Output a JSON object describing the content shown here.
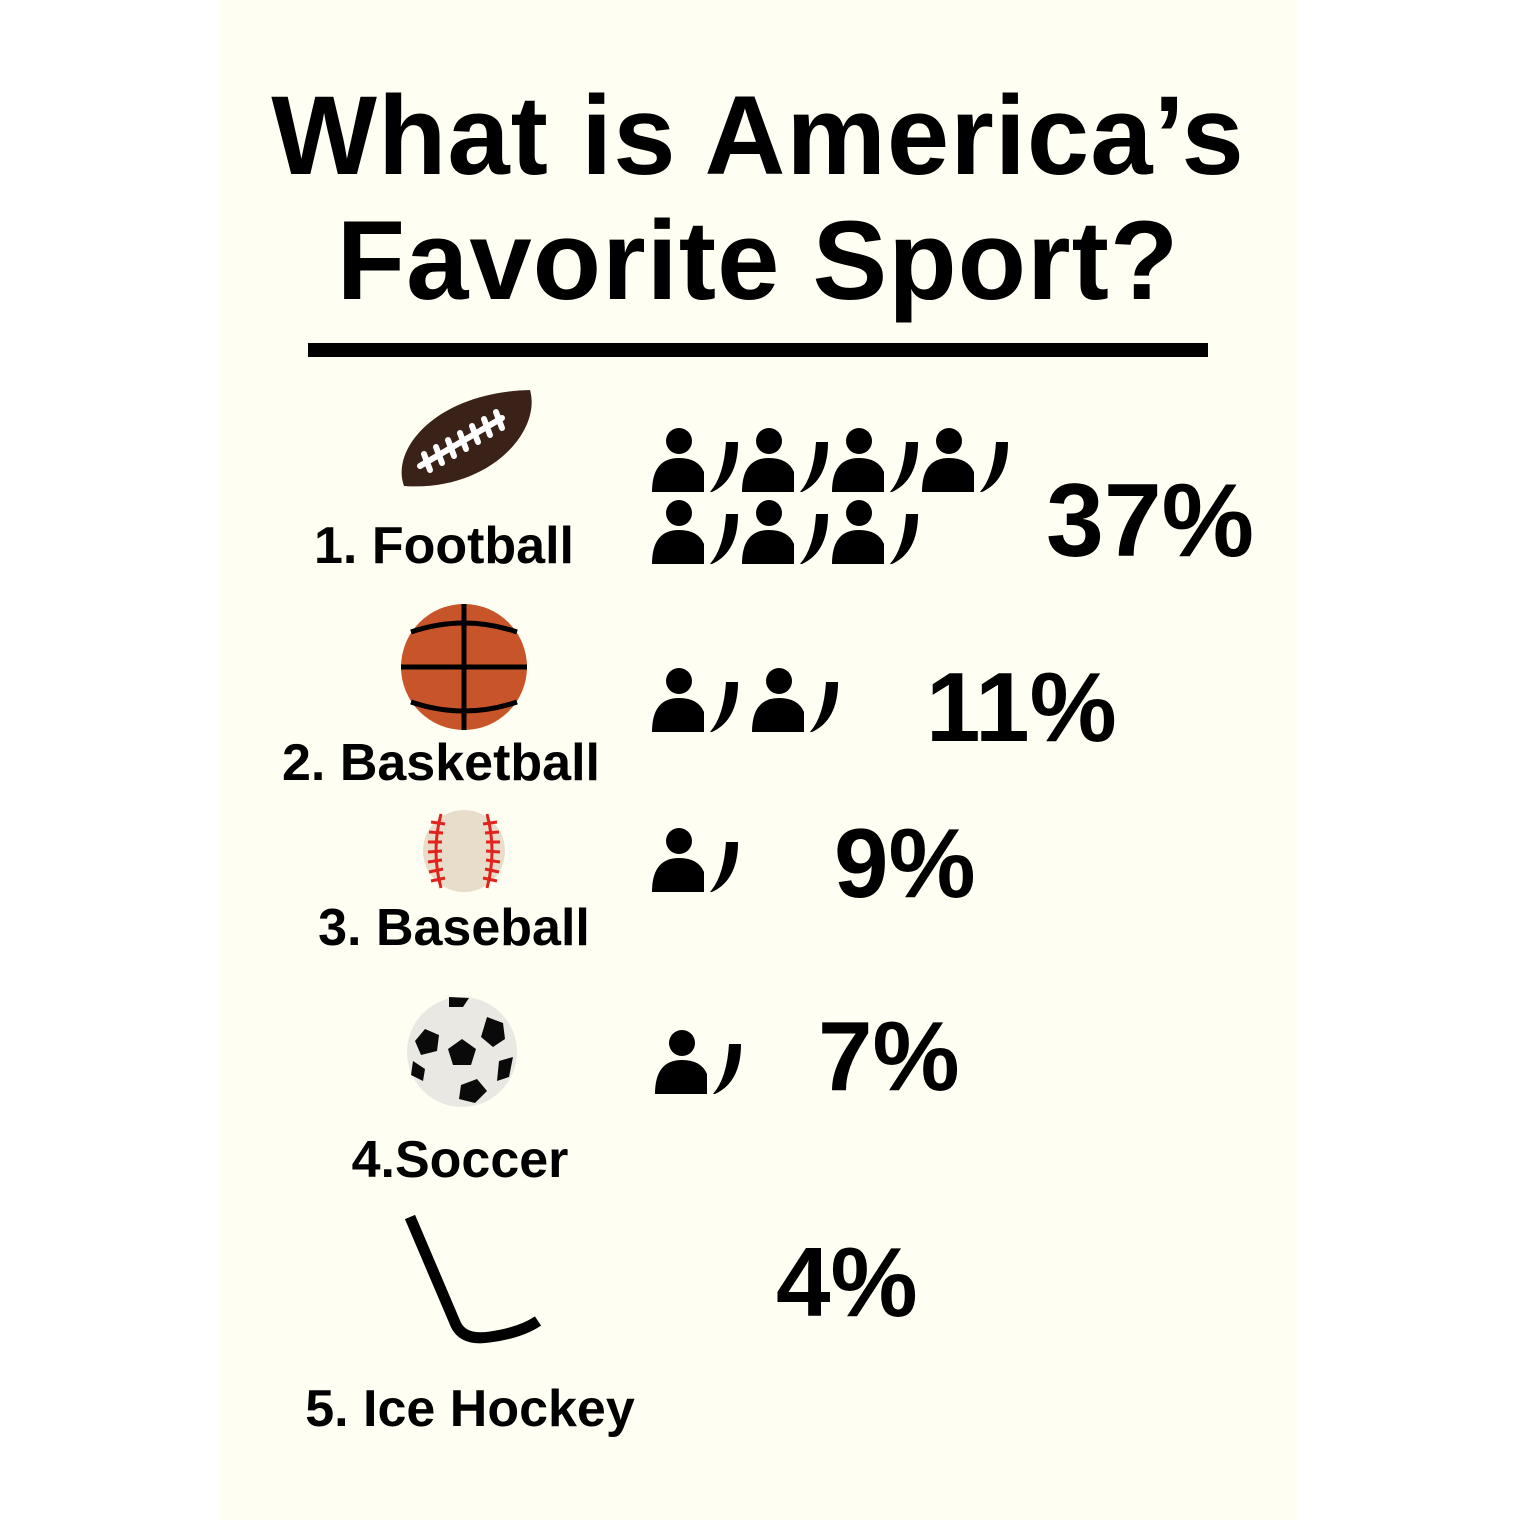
{
  "title": {
    "line1": "What is America’s",
    "line2": "Favorite Sport?"
  },
  "chart_data": {
    "type": "pictograph",
    "unit_percent": 5,
    "categories": [
      "1. Football",
      "2. Basketball",
      "3. Baseball",
      "4.Soccer",
      "5. Ice Hockey"
    ],
    "values": [
      37,
      11,
      9,
      7,
      4
    ],
    "value_labels": [
      "37%",
      "11%",
      "9%",
      "7%",
      "4%"
    ],
    "icons": [
      "football-icon",
      "basketball-icon",
      "baseball-icon",
      "soccer-ball-icon",
      "hockey-stick-icon"
    ],
    "colors": {
      "football": "#3b2218",
      "basketball": "#c8552a",
      "baseball": "#e8dccb",
      "baseball_stitch": "#e0231c",
      "soccer": "#eae8e2",
      "person": "#000000",
      "background": "#fffef2"
    }
  }
}
